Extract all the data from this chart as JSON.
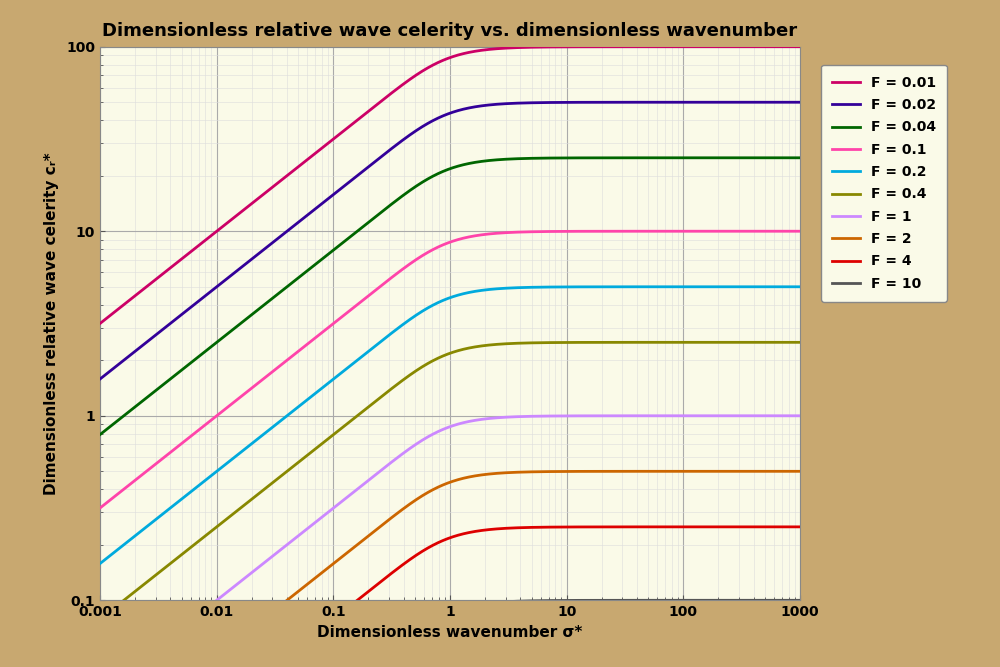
{
  "title": "Dimensionless relative wave celerity vs. dimensionless wavenumber",
  "xlabel": "Dimensionless wavenumber σ*",
  "ylabel": "Dimensionless relative wave celerity cᵣ*",
  "xlim": [
    0.001,
    1000
  ],
  "ylim": [
    0.1,
    100
  ],
  "background_outer": "#c8a870",
  "background_inner": "#fafae8",
  "grid_major_color": "#aaaaaa",
  "grid_minor_color": "#dddddd",
  "froude_numbers": [
    0.01,
    0.02,
    0.04,
    0.1,
    0.2,
    0.4,
    1,
    2,
    4,
    10
  ],
  "line_colors": {
    "0.01": "#cc0066",
    "0.02": "#330099",
    "0.04": "#006600",
    "0.1": "#ff44aa",
    "0.2": "#00aadd",
    "0.4": "#888800",
    "1": "#cc88ff",
    "2": "#cc6600",
    "4": "#dd0000",
    "10": "#555555"
  },
  "legend_labels": {
    "0.01": "F = 0.01",
    "0.02": "F = 0.02",
    "0.04": "F = 0.04",
    "0.1": "F = 0.1",
    "0.2": "F = 0.2",
    "0.4": "F = 0.4",
    "1": "F = 1",
    "2": "F = 2",
    "4": "F = 4",
    "10": "F = 10"
  },
  "linewidth": 2.0,
  "title_fontsize": 13,
  "label_fontsize": 11,
  "legend_fontsize": 10
}
